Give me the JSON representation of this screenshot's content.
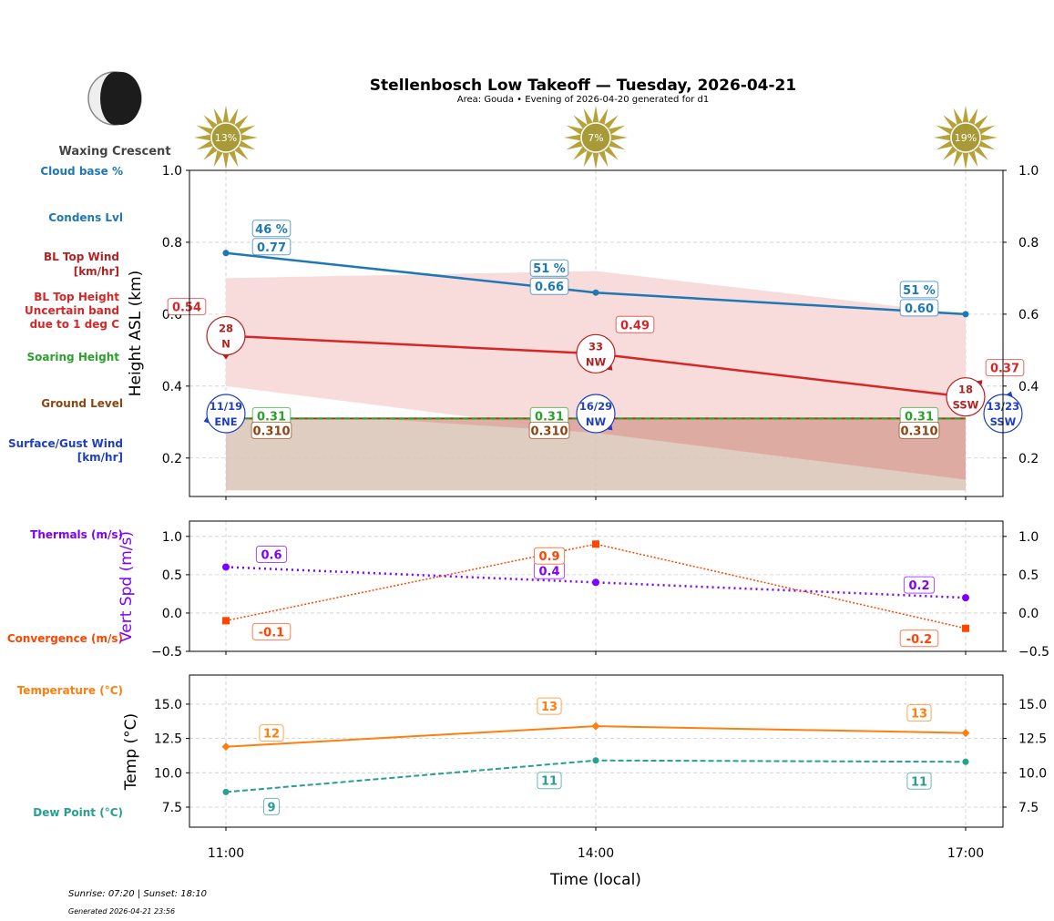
{
  "title": "Stellenbosch Low Takeoff — Tuesday, 2026-04-21",
  "subtitle": "Area: Gouda • Evening of 2026-04-20 generated for d1",
  "moon_phase": "Waxing Crescent",
  "footer": {
    "sun": "Sunrise: 07:20 | Sunset: 18:10",
    "generated": "Generated 2026-04-21 23:56"
  },
  "side_labels": {
    "cloud_base": "Cloud base %",
    "condens": "Condens Lvl",
    "bl_wind_1": "BL Top Wind",
    "bl_wind_2": "[km/hr]",
    "bl_height_1": "BL Top Height",
    "bl_height_2": "Uncertain band",
    "bl_height_3": "due to 1 deg C",
    "soaring": "Soaring Height",
    "ground": "Ground Level",
    "surface_1": "Surface/Gust Wind",
    "surface_2": "[km/hr]",
    "thermals": "Thermals (m/s)",
    "convergence": "Convergence (m/s)",
    "temperature": "Temperature (°C)",
    "dewpoint": "Dew Point (°C)"
  },
  "colors": {
    "condens": "#1f77b4",
    "bl": "#d62728",
    "band": "#f8dcdc",
    "soaring": "#2ca02c",
    "ground": "#8b4513",
    "ground_fill": "#d9c4b6",
    "surface": "#1f3fbf",
    "thermal": "#7f00ff",
    "convergence": "#ff4500",
    "temp": "#ff7f0e",
    "dew": "#26a090",
    "sun": "#b5a33a"
  },
  "chart_data": [
    {
      "type": "line",
      "ylabel": "Height ASL (km)",
      "ylim": [
        0.093,
        1.0
      ],
      "yticks": [
        "0.2",
        "0.4",
        "0.6",
        "0.8",
        "1.0"
      ],
      "categories": [
        "11:00",
        "14:00",
        "17:00"
      ],
      "sun_cloud_cover": [
        "13%",
        "7%",
        "19%"
      ],
      "cloud_base_pct": [
        "46 %",
        "51 %",
        "51 %"
      ],
      "condens_level": [
        0.77,
        0.66,
        0.6
      ],
      "condens_labels": [
        "0.77",
        "0.66",
        "0.60"
      ],
      "bl_top": [
        0.54,
        0.49,
        0.37
      ],
      "bl_top_labels": [
        "0.54",
        "0.49",
        "0.37"
      ],
      "bl_band_upper": [
        0.7,
        0.72,
        0.6
      ],
      "bl_band_lower": [
        0.4,
        0.27,
        0.14
      ],
      "bl_wind": [
        {
          "speed": "28",
          "dir": "N"
        },
        {
          "speed": "33",
          "dir": "NW"
        },
        {
          "speed": "18",
          "dir": "SSW"
        }
      ],
      "soaring_height": [
        0.31,
        0.31,
        0.31
      ],
      "soaring_labels": [
        "0.31",
        "0.31",
        "0.31"
      ],
      "ground_level": [
        0.31,
        0.31,
        0.31
      ],
      "ground_labels": [
        "0.310",
        "0.310",
        "0.310"
      ],
      "ground_fill_base": 0.11,
      "surface_wind": [
        {
          "speed": "11/19",
          "dir": "ENE"
        },
        {
          "speed": "16/29",
          "dir": "NW"
        },
        {
          "speed": "13/23",
          "dir": "SSW"
        }
      ]
    },
    {
      "type": "line",
      "ylabel": "Vert Spd (m/s)",
      "ylim": [
        -0.5,
        1.2
      ],
      "yticks": [
        "−0.5",
        "0.0",
        "0.5",
        "1.0"
      ],
      "series": [
        {
          "name": "Thermals (m/s)",
          "values": [
            0.6,
            0.4,
            0.2
          ],
          "labels": [
            "0.6",
            "0.4",
            "0.2"
          ]
        },
        {
          "name": "Convergence (m/s)",
          "values": [
            -0.1,
            0.9,
            -0.2
          ],
          "labels": [
            "-0.1",
            "0.9",
            "-0.2"
          ]
        }
      ]
    },
    {
      "type": "line",
      "ylabel": "Temp (°C)",
      "xlabel": "Time (local)",
      "ylim": [
        6.04,
        17.12
      ],
      "yticks": [
        "7.5",
        "10.0",
        "12.5",
        "15.0"
      ],
      "series": [
        {
          "name": "Temperature (°C)",
          "values": [
            11.9,
            13.4,
            12.9
          ],
          "labels": [
            "12",
            "13",
            "13"
          ]
        },
        {
          "name": "Dew Point (°C)",
          "values": [
            8.6,
            10.9,
            10.8
          ],
          "labels": [
            "9",
            "11",
            "11"
          ]
        }
      ]
    }
  ]
}
